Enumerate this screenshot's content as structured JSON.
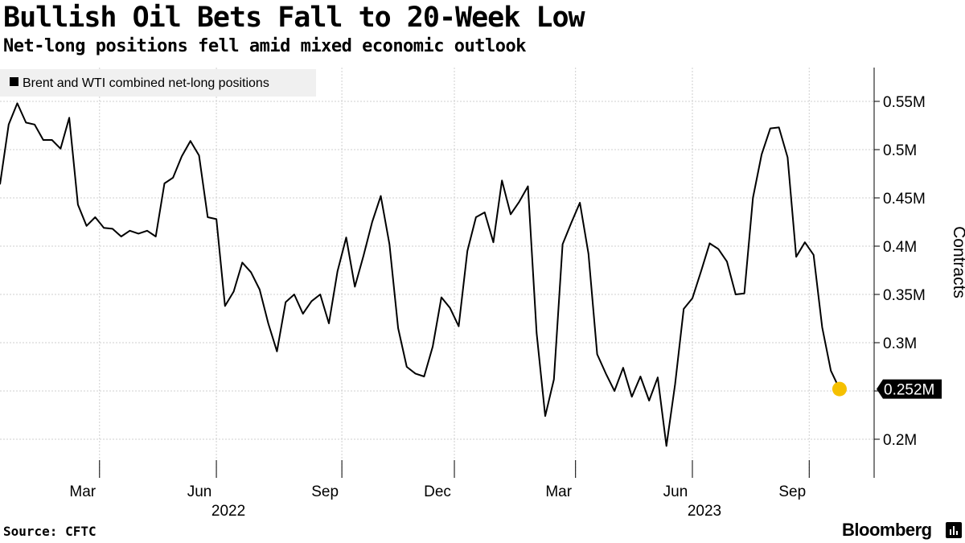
{
  "header": {
    "title": "Bullish Oil Bets Fall to 20-Week Low",
    "subtitle": "Net-long positions fell amid mixed economic outlook"
  },
  "footer": {
    "source": "Source: CFTC",
    "brand": "Bloomberg"
  },
  "colors": {
    "line": "#000000",
    "marker": "#f5c000",
    "grid": "#cfcfcf",
    "legend_bg": "#f0f0f0",
    "label_bg": "#000000",
    "label_text": "#ffffff"
  },
  "icons": {
    "brand": "bloomberg-terminal-icon"
  },
  "chart_data": {
    "type": "line",
    "title": "Bullish Oil Bets Fall to 20-Week Low",
    "subtitle": "Net-long positions fell amid mixed economic outlook",
    "ylabel": "Contracts",
    "legend": {
      "label": "Brent and WTI combined net-long positions",
      "position": "top-left"
    },
    "y_axis": {
      "min": 0.16,
      "max": 0.585,
      "position": "right",
      "ticks": [
        {
          "value": 0.2,
          "label": "0.2M"
        },
        {
          "value": 0.25,
          "label": ""
        },
        {
          "value": 0.3,
          "label": "0.3M"
        },
        {
          "value": 0.35,
          "label": "0.35M"
        },
        {
          "value": 0.4,
          "label": "0.4M"
        },
        {
          "value": 0.45,
          "label": "0.45M"
        },
        {
          "value": 0.5,
          "label": "0.5M"
        },
        {
          "value": 0.55,
          "label": "0.55M"
        }
      ]
    },
    "x_axis": {
      "min": 0,
      "max": 101,
      "ticks": [
        {
          "index": 11.5,
          "label": "Mar"
        },
        {
          "index": 25,
          "label": "Jun",
          "year": "2022"
        },
        {
          "index": 39.5,
          "label": "Sep"
        },
        {
          "index": 52.5,
          "label": "Dec"
        },
        {
          "index": 66.5,
          "label": "Mar"
        },
        {
          "index": 80,
          "label": "Jun",
          "year": "2023"
        },
        {
          "index": 93.5,
          "label": "Sep"
        }
      ]
    },
    "grid": true,
    "series": [
      {
        "name": "Brent and WTI combined net-long positions",
        "unit": "million contracts",
        "values": [
          0.464,
          0.526,
          0.548,
          0.528,
          0.526,
          0.51,
          0.51,
          0.501,
          0.533,
          0.443,
          0.421,
          0.43,
          0.419,
          0.418,
          0.41,
          0.416,
          0.413,
          0.416,
          0.41,
          0.465,
          0.471,
          0.493,
          0.509,
          0.494,
          0.43,
          0.428,
          0.338,
          0.353,
          0.383,
          0.373,
          0.355,
          0.32,
          0.291,
          0.342,
          0.35,
          0.33,
          0.343,
          0.35,
          0.32,
          0.374,
          0.409,
          0.358,
          0.39,
          0.425,
          0.452,
          0.402,
          0.315,
          0.275,
          0.268,
          0.265,
          0.296,
          0.347,
          0.336,
          0.317,
          0.395,
          0.43,
          0.435,
          0.404,
          0.468,
          0.433,
          0.446,
          0.462,
          0.31,
          0.224,
          0.262,
          0.402,
          0.424,
          0.445,
          0.392,
          0.288,
          0.268,
          0.25,
          0.274,
          0.244,
          0.265,
          0.24,
          0.264,
          0.193,
          0.257,
          0.335,
          0.346,
          0.374,
          0.403,
          0.397,
          0.384,
          0.35,
          0.351,
          0.45,
          0.495,
          0.522,
          0.523,
          0.492,
          0.389,
          0.404,
          0.391,
          0.316,
          0.271,
          0.252
        ]
      }
    ],
    "last_value_label": "0.252M"
  }
}
